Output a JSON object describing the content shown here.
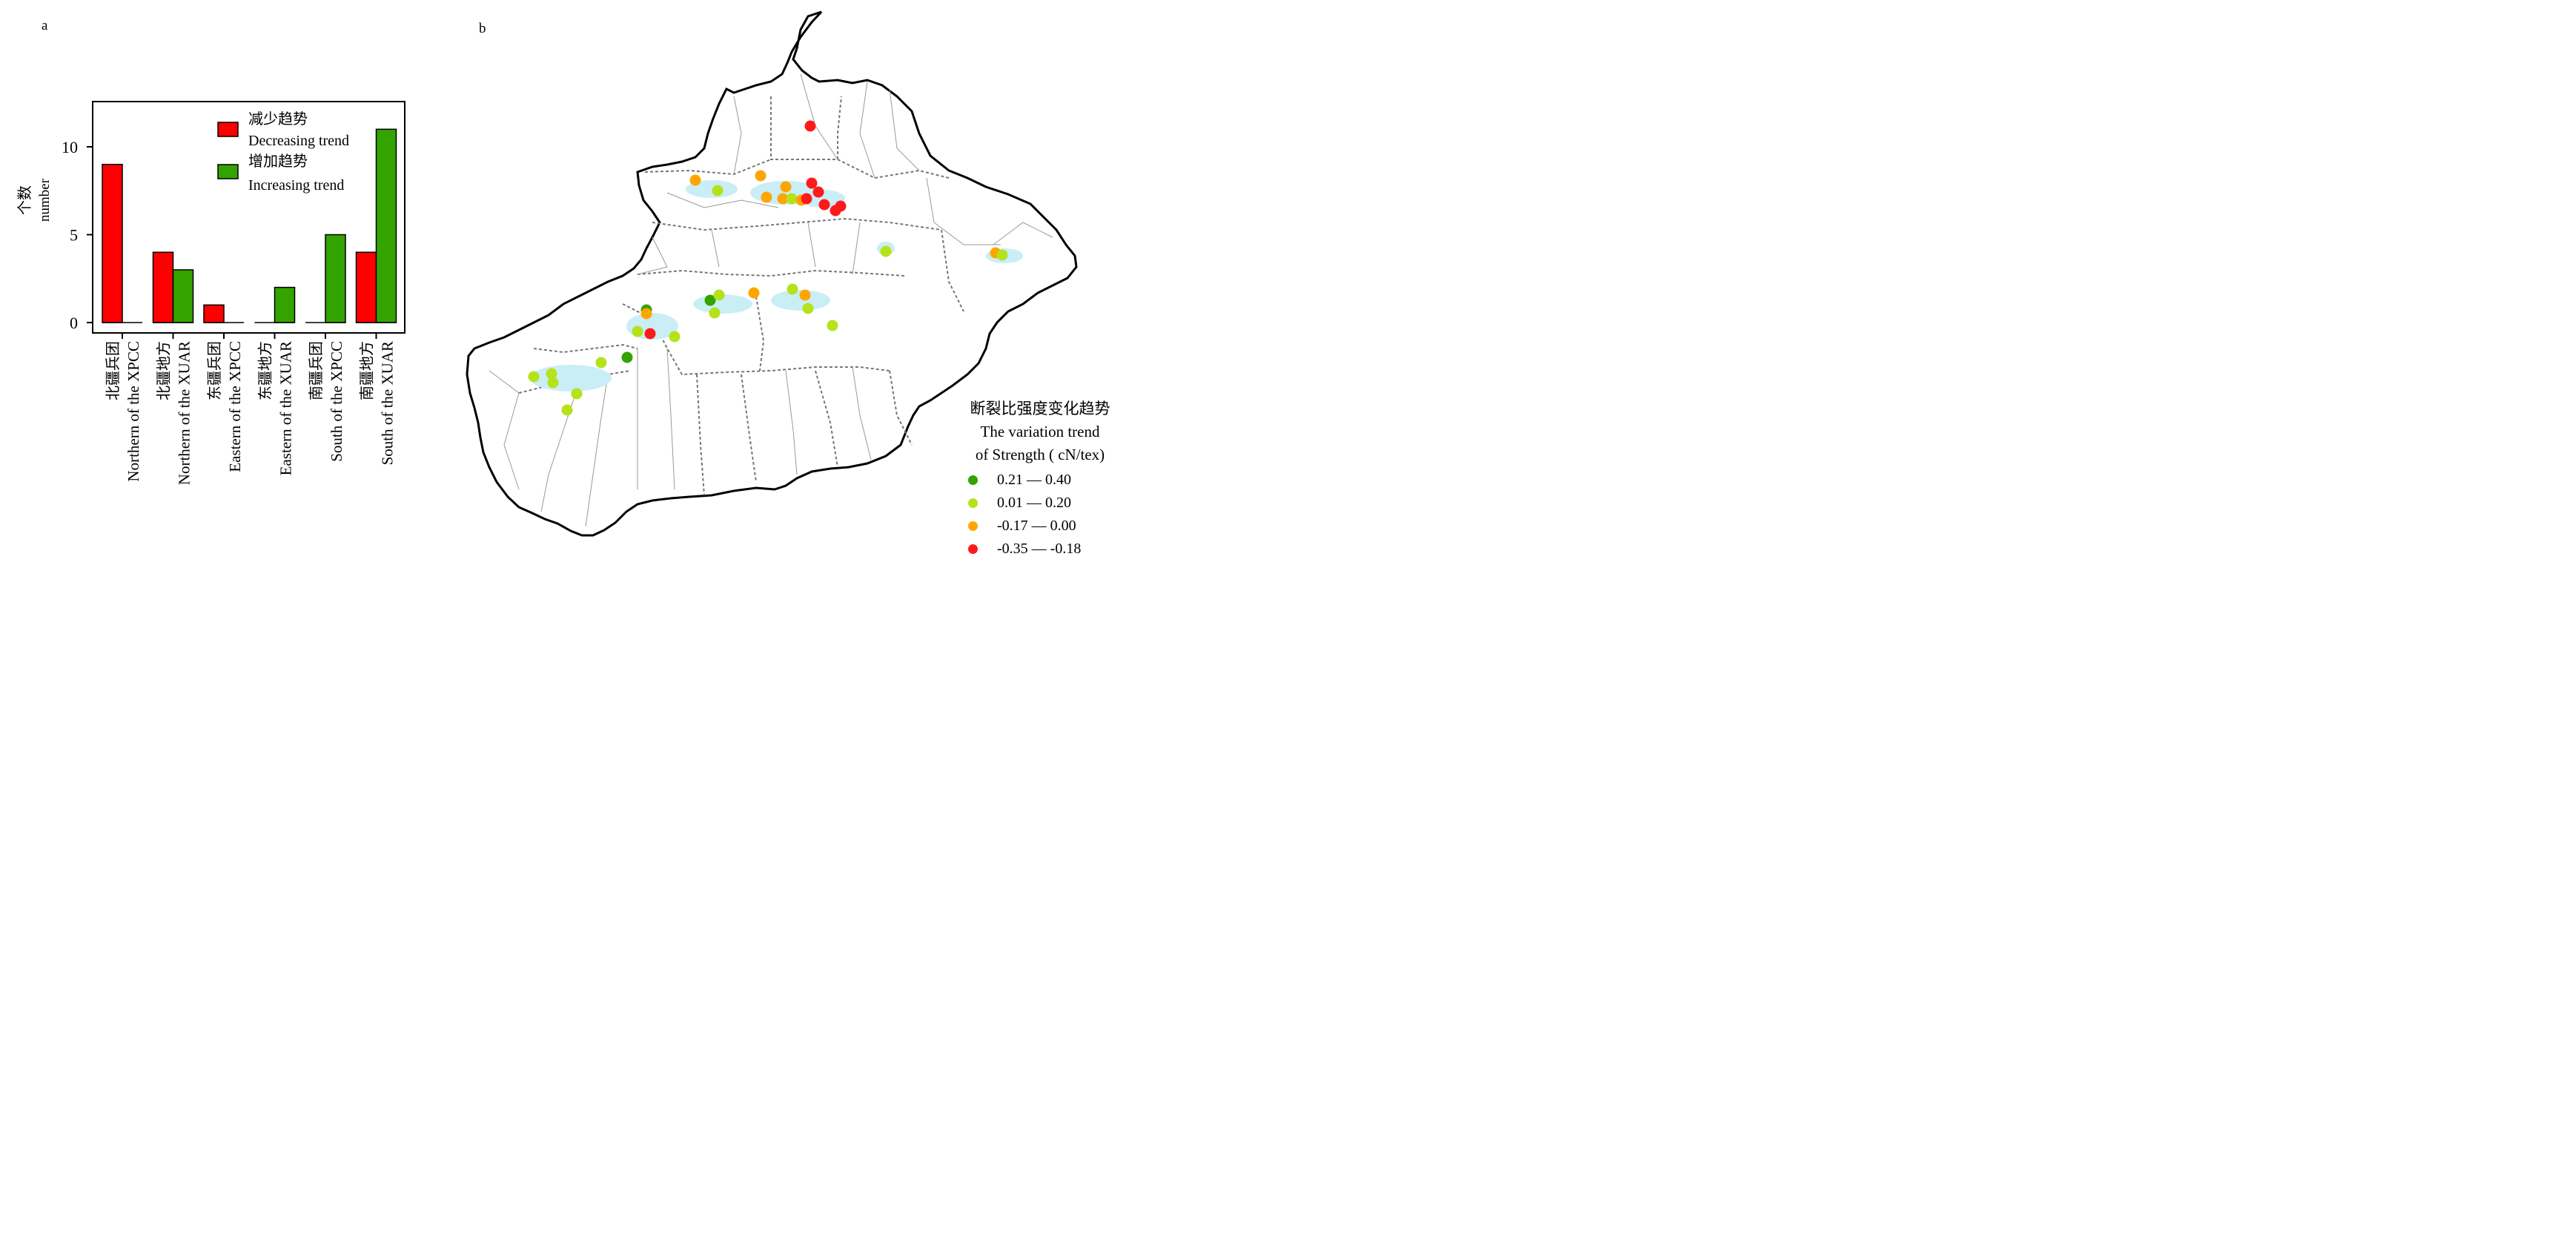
{
  "panel_a_label": "a",
  "panel_b_label": "b",
  "chart_data": {
    "type": "bar",
    "title": "",
    "ylabel_cn": "个数",
    "ylabel_en": "number",
    "xlabel": "",
    "ylim": [
      0,
      12.5
    ],
    "yticks": [
      0,
      5,
      10
    ],
    "grid": false,
    "legend_position": "top-right",
    "categories": [
      {
        "cn": "北疆兵团",
        "en": "Northern of the XPCC"
      },
      {
        "cn": "北疆地方",
        "en": "Northern of the XUAR"
      },
      {
        "cn": "东疆兵团",
        "en": "Eastern of the XPCC"
      },
      {
        "cn": "东疆地方",
        "en": "Eastern of the XUAR"
      },
      {
        "cn": "南疆兵团",
        "en": "South of the XPCC"
      },
      {
        "cn": "南疆地方",
        "en": "South of the XUAR"
      }
    ],
    "series": [
      {
        "name_cn": "减少趋势",
        "name_en": "Decreasing trend",
        "color": "#ff0000",
        "values": [
          9,
          4,
          1,
          0,
          0,
          4
        ]
      },
      {
        "name_cn": "增加趋势",
        "name_en": "Increasing trend",
        "color": "#33a300",
        "values": [
          0,
          3,
          0,
          2,
          5,
          11
        ]
      }
    ]
  },
  "map": {
    "legend_title_cn": "断裂比强度变化趋势",
    "legend_title_en1": "The variation trend",
    "legend_title_en2": "of  Strength ( cN/tex)",
    "classes": [
      {
        "label": "0.21 — 0.40",
        "color": "#33a300"
      },
      {
        "label": "0.01 — 0.20",
        "color": "#b5e21a"
      },
      {
        "label": "-0.17 — 0.00",
        "color": "#ffa500"
      },
      {
        "label": "-0.35 — -0.18",
        "color": "#ff1a1a"
      }
    ]
  }
}
